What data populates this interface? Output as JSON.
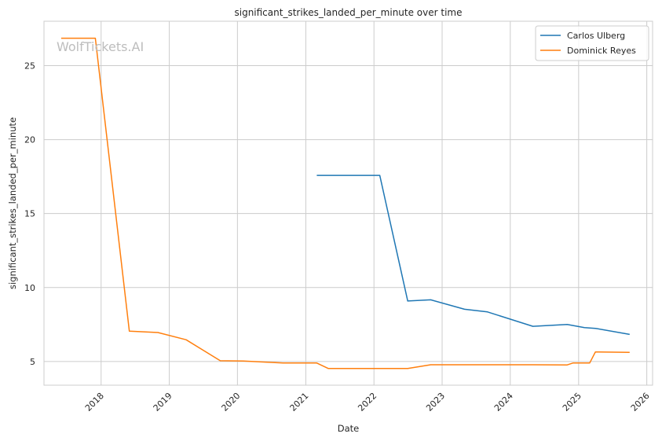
{
  "chart_data": {
    "type": "line",
    "title": "significant_strikes_landed_per_minute over time",
    "xlabel": "Date",
    "ylabel": "significant_strikes_landed_per_minute",
    "watermark": "WolfTickets.AI",
    "xlim": [
      "2017-03-01",
      "2026-02-01"
    ],
    "ylim": [
      3.4,
      28.0
    ],
    "x_ticks": [
      "2018-01-01",
      "2019-01-01",
      "2020-01-01",
      "2021-01-01",
      "2022-01-01",
      "2023-01-01",
      "2024-01-01",
      "2025-01-01",
      "2026-01-01"
    ],
    "x_tick_labels": [
      "2018",
      "2019",
      "2020",
      "2021",
      "2022",
      "2023",
      "2024",
      "2025",
      "2026"
    ],
    "y_ticks": [
      5,
      10,
      15,
      20,
      25
    ],
    "y_tick_labels": [
      "5",
      "10",
      "15",
      "20",
      "25"
    ],
    "grid": true,
    "legend_position": "top-right",
    "series": [
      {
        "name": "Carlos Ulberg",
        "color": "#1f77b4",
        "x": [
          "2021-03-01",
          "2022-02-01",
          "2022-07-01",
          "2022-11-01",
          "2023-05-01",
          "2023-09-01",
          "2024-05-01",
          "2024-11-01",
          "2025-02-01",
          "2025-04-01",
          "2025-10-01"
        ],
        "y": [
          17.58,
          17.58,
          9.09,
          9.17,
          8.53,
          8.35,
          7.38,
          7.5,
          7.29,
          7.24,
          6.83
        ]
      },
      {
        "name": "Dominick Reyes",
        "color": "#ff7f0e",
        "x": [
          "2017-06-01",
          "2017-12-01",
          "2018-06-01",
          "2018-11-01",
          "2019-04-01",
          "2019-10-01",
          "2020-02-01",
          "2020-09-01",
          "2021-03-01",
          "2021-05-01",
          "2022-07-01",
          "2022-11-01",
          "2023-05-01",
          "2024-05-01",
          "2024-11-01",
          "2024-12-01",
          "2025-03-01",
          "2025-04-01",
          "2025-10-01"
        ],
        "y": [
          26.85,
          26.85,
          7.05,
          6.96,
          6.47,
          5.05,
          5.03,
          4.9,
          4.9,
          4.53,
          4.53,
          4.78,
          4.78,
          4.78,
          4.77,
          4.9,
          4.9,
          5.65,
          5.62
        ]
      }
    ]
  }
}
